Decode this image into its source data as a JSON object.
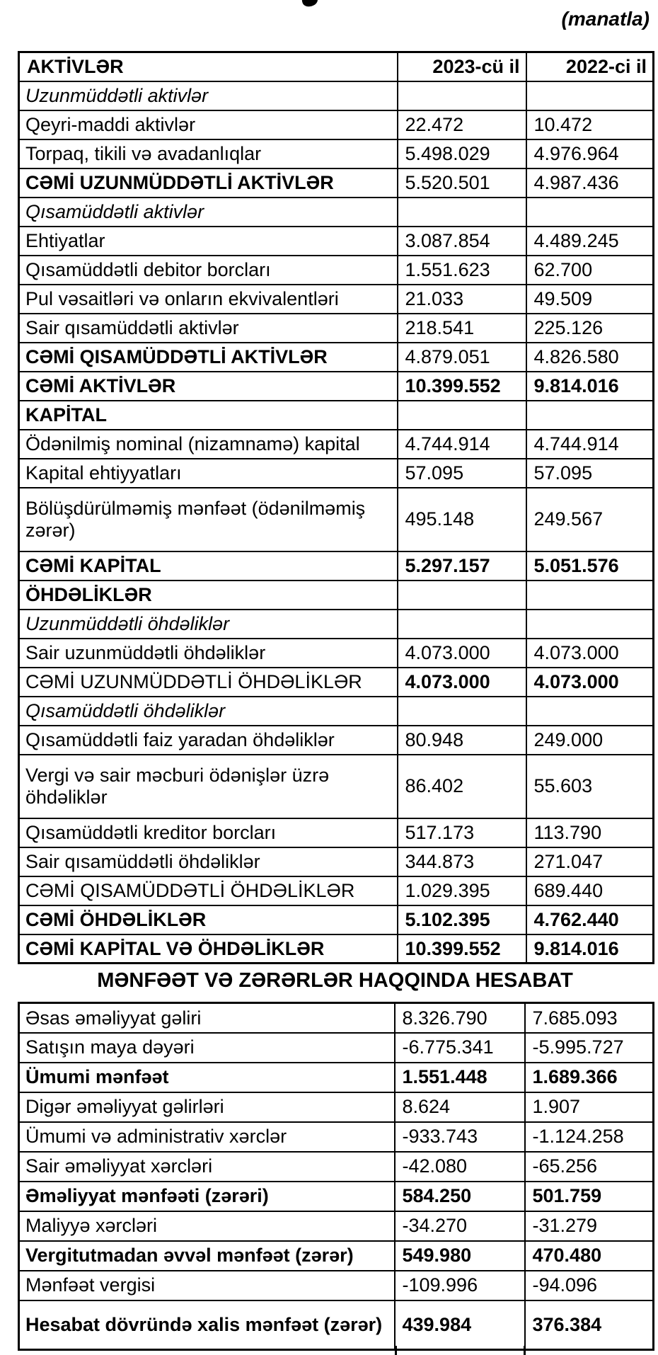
{
  "page": {
    "currency_note": "(manatla)",
    "income_statement_title": "MƏNFƏƏT VƏ ZƏRƏRLƏR HAQQINDA HESABAT"
  },
  "balance_sheet": {
    "columns": [
      "AKTİVLƏR",
      "2023-cü il",
      "2022-ci il"
    ],
    "rows": [
      {
        "label": "Uzunmüddətli aktivlər",
        "y2023": "",
        "y2022": "",
        "label_italic": true
      },
      {
        "label": "Qeyri-maddi aktivlər",
        "y2023": "22.472",
        "y2022": "10.472"
      },
      {
        "label": "Torpaq, tikili və avadanlıqlar",
        "y2023": "5.498.029",
        "y2022": "4.976.964"
      },
      {
        "label": "CƏMİ UZUNMÜDDƏTLİ AKTİVLƏR",
        "y2023": "5.520.501",
        "y2022": "4.987.436",
        "label_bold": true
      },
      {
        "label": "Qısamüddətli aktivlər",
        "y2023": "",
        "y2022": "",
        "label_italic": true
      },
      {
        "label": "Ehtiyatlar",
        "y2023": "3.087.854",
        "y2022": "4.489.245"
      },
      {
        "label": "Qısamüddətli debitor borcları",
        "y2023": "1.551.623",
        "y2022": "62.700"
      },
      {
        "label": "Pul vəsaitləri və onların ekvivalentləri",
        "y2023": "21.033",
        "y2022": "49.509"
      },
      {
        "label": "Sair qısamüddətli aktivlər",
        "y2023": "218.541",
        "y2022": "225.126"
      },
      {
        "label": "CƏMİ QISAMÜDDƏTLİ AKTİVLƏR",
        "y2023": "4.879.051",
        "y2022": "4.826.580",
        "label_bold": true
      },
      {
        "label": "CƏMİ AKTİVLƏR",
        "y2023": "10.399.552",
        "y2022": "9.814.016",
        "label_bold": true,
        "values_bold": true
      },
      {
        "label": "KAPİTAL",
        "y2023": "",
        "y2022": "",
        "label_bold": true
      },
      {
        "label": "Ödənilmiş nominal (nizamnamə) kapital",
        "y2023": "4.744.914",
        "y2022": "4.744.914"
      },
      {
        "label": "Kapital ehtiyyatları",
        "y2023": "57.095",
        "y2022": "57.095"
      },
      {
        "label": "Bölüşdürülməmiş mənfəət (ödənilməmiş zərər)",
        "y2023": "495.148",
        "y2022": "249.567",
        "tall": true
      },
      {
        "label": "CƏMİ KAPİTAL",
        "y2023": "5.297.157",
        "y2022": "5.051.576",
        "label_bold": true,
        "values_bold": true
      },
      {
        "label": "ÖHDƏLİKLƏR",
        "y2023": "",
        "y2022": "",
        "label_bold": true
      },
      {
        "label": "Uzunmüddətli öhdəliklər",
        "y2023": "",
        "y2022": "",
        "label_italic": true
      },
      {
        "label": "Sair uzunmüddətli öhdəliklər",
        "y2023": "4.073.000",
        "y2022": "4.073.000"
      },
      {
        "label": "CƏMİ UZUNMÜDDƏTLİ ÖHDƏLİKLƏR",
        "y2023": "4.073.000",
        "y2022": "4.073.000",
        "values_bold": true
      },
      {
        "label": "Qısamüddətli öhdəliklər",
        "y2023": "",
        "y2022": "",
        "label_italic": true
      },
      {
        "label": "Qısamüddətli faiz yaradan öhdəliklər",
        "y2023": "80.948",
        "y2022": "249.000"
      },
      {
        "label": "Vergi və sair məcburi ödənişlər üzrə öhdəliklər",
        "y2023": "86.402",
        "y2022": "55.603",
        "tall": true
      },
      {
        "label": "Qısamüddətli kreditor borcları",
        "y2023": "517.173",
        "y2022": "113.790"
      },
      {
        "label": "Sair qısamüddətli öhdəliklər",
        "y2023": "344.873",
        "y2022": "271.047"
      },
      {
        "label": "CƏMİ QISAMÜDDƏTLİ ÖHDƏLİKLƏR",
        "y2023": "1.029.395",
        "y2022": "689.440"
      },
      {
        "label": "CƏMİ ÖHDƏLİKLƏR",
        "y2023": "5.102.395",
        "y2022": "4.762.440",
        "label_bold": true,
        "values_bold": true
      },
      {
        "label": "CƏMİ KAPİTAL VƏ ÖHDƏLİKLƏR",
        "y2023": "10.399.552",
        "y2022": "9.814.016",
        "label_bold": true,
        "values_bold": true
      }
    ]
  },
  "income_statement": {
    "rows": [
      {
        "label": "Əsas əməliyyat gəliri",
        "y2023": "8.326.790",
        "y2022": "7.685.093"
      },
      {
        "label": "Satışın maya dəyəri",
        "y2023": "-6.775.341",
        "y2022": "-5.995.727"
      },
      {
        "label": "Ümumi mənfəət",
        "y2023": "1.551.448",
        "y2022": "1.689.366",
        "label_bold": true,
        "values_bold": true
      },
      {
        "label": "Digər əməliyyat gəlirləri",
        "y2023": "8.624",
        "y2022": "1.907"
      },
      {
        "label": "Ümumi və administrativ xərclər",
        "y2023": "-933.743",
        "y2022": "-1.124.258"
      },
      {
        "label": "Sair əməliyyat xərcləri",
        "y2023": "-42.080",
        "y2022": "-65.256"
      },
      {
        "label": "Əməliyyat mənfəəti (zərəri)",
        "y2023": "584.250",
        "y2022": "501.759",
        "label_bold": true,
        "values_bold": true
      },
      {
        "label": "Maliyyə xərcləri",
        "y2023": "-34.270",
        "y2022": "-31.279"
      },
      {
        "label": "Vergitutmadan əvvəl mənfəət (zərər)",
        "y2023": "549.980",
        "y2022": "470.480",
        "label_bold": true,
        "values_bold": true
      },
      {
        "label": "Mənfəət vergisi",
        "y2023": "-109.996",
        "y2022": "-94.096"
      },
      {
        "label": "Hesabat dövründə xalis mənfəət (zərər)",
        "y2023": "439.984",
        "y2022": "376.384",
        "label_bold": true,
        "values_bold": true,
        "tall": true
      }
    ]
  }
}
